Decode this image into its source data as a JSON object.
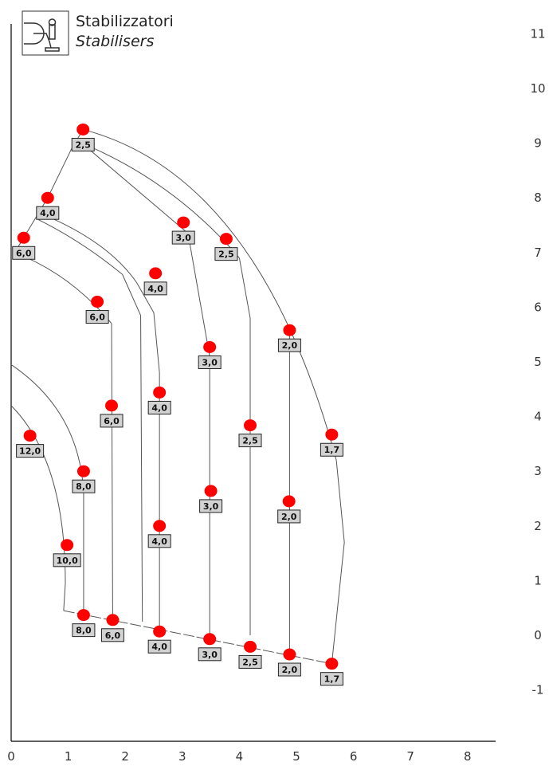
{
  "legend": {
    "icon": "stabiliser-icon",
    "title": "Stabilizzatori",
    "subtitle": "Stabilisers"
  },
  "chart_data": {
    "type": "scatter",
    "title": "",
    "xlabel": "",
    "ylabel": "",
    "xlim": [
      0,
      8
    ],
    "ylim": [
      -1,
      11
    ],
    "x_ticks": [
      0,
      1,
      2,
      3,
      4,
      5,
      6,
      7,
      8
    ],
    "y_ticks": [
      11,
      10,
      9,
      8,
      7,
      6,
      5,
      4,
      3,
      2,
      1,
      0,
      -1
    ],
    "grid": false,
    "colors": {
      "marker": "#ff0000",
      "curve": "#555555",
      "label_box": "#d2d2d2"
    },
    "points": [
      {
        "x": 1.26,
        "y": 9.25,
        "label": "2,5"
      },
      {
        "x": 0.64,
        "y": 8.0,
        "label": "4,0"
      },
      {
        "x": 0.22,
        "y": 7.27,
        "label": "6,0"
      },
      {
        "x": 0.33,
        "y": 3.65,
        "label": "12,0"
      },
      {
        "x": 3.02,
        "y": 7.55,
        "label": "3,0"
      },
      {
        "x": 3.77,
        "y": 7.25,
        "label": "2,5"
      },
      {
        "x": 2.53,
        "y": 6.62,
        "label": "4,0"
      },
      {
        "x": 1.51,
        "y": 6.1,
        "label": "6,0"
      },
      {
        "x": 4.88,
        "y": 5.58,
        "label": "2,0"
      },
      {
        "x": 3.48,
        "y": 5.27,
        "label": "3,0"
      },
      {
        "x": 2.6,
        "y": 4.44,
        "label": "4,0"
      },
      {
        "x": 1.76,
        "y": 4.2,
        "label": "6,0"
      },
      {
        "x": 4.19,
        "y": 3.84,
        "label": "2,5"
      },
      {
        "x": 5.62,
        "y": 3.67,
        "label": "1,7"
      },
      {
        "x": 1.27,
        "y": 3.0,
        "label": "8,0"
      },
      {
        "x": 3.5,
        "y": 2.64,
        "label": "3,0"
      },
      {
        "x": 4.87,
        "y": 2.45,
        "label": "2,0"
      },
      {
        "x": 2.6,
        "y": 2.0,
        "label": "4,0"
      },
      {
        "x": 0.98,
        "y": 1.65,
        "label": "10,0"
      },
      {
        "x": 1.27,
        "y": 0.37,
        "label": "8,0"
      },
      {
        "x": 1.78,
        "y": 0.28,
        "label": "6,0"
      },
      {
        "x": 2.6,
        "y": 0.07,
        "label": "4,0"
      },
      {
        "x": 3.48,
        "y": -0.07,
        "label": "3,0"
      },
      {
        "x": 4.19,
        "y": -0.21,
        "label": "2,5"
      },
      {
        "x": 4.88,
        "y": -0.35,
        "label": "2,0"
      },
      {
        "x": 5.62,
        "y": -0.52,
        "label": "1,7"
      }
    ],
    "curves": [
      {
        "type": "arc",
        "from": [
          1.26,
          9.25
        ],
        "control": [
          4.35,
          8.4
        ],
        "to": [
          5.7,
          3.2
        ]
      },
      {
        "type": "line",
        "points": [
          [
            5.7,
            3.2
          ],
          [
            5.84,
            1.7
          ],
          [
            5.62,
            -0.52
          ]
        ]
      },
      {
        "type": "arc",
        "from": [
          1.24,
          9.0
        ],
        "control": [
          2.85,
          8.3
        ],
        "to": [
          4.0,
          6.9
        ]
      },
      {
        "type": "line",
        "points": [
          [
            4.0,
            6.9
          ],
          [
            4.19,
            5.8
          ],
          [
            4.19,
            0.0
          ]
        ]
      },
      {
        "type": "arc",
        "from": [
          0.55,
          7.7
        ],
        "control": [
          1.7,
          7.2
        ],
        "to": [
          2.2,
          6.45
        ]
      },
      {
        "type": "line",
        "points": [
          [
            2.2,
            6.45
          ],
          [
            2.5,
            5.9
          ],
          [
            2.6,
            4.8
          ],
          [
            2.6,
            0.07
          ]
        ]
      },
      {
        "type": "arc",
        "from": [
          0.48,
          7.6
        ],
        "control": [
          1.25,
          7.2
        ],
        "to": [
          1.95,
          6.6
        ]
      },
      {
        "type": "line",
        "points": [
          [
            1.95,
            6.6
          ],
          [
            2.27,
            5.85
          ],
          [
            2.3,
            0.25
          ]
        ]
      },
      {
        "type": "arc",
        "from": [
          0.06,
          7.0
        ],
        "control": [
          1.05,
          6.6
        ],
        "to": [
          1.76,
          5.7
        ]
      },
      {
        "type": "line",
        "points": [
          [
            1.76,
            5.7
          ],
          [
            1.78,
            0.28
          ]
        ]
      },
      {
        "type": "line",
        "points": [
          [
            1.24,
            9.0
          ],
          [
            3.1,
            7.35
          ],
          [
            3.48,
            5.1
          ],
          [
            3.48,
            -0.07
          ]
        ]
      },
      {
        "type": "line",
        "points": [
          [
            4.88,
            5.58
          ],
          [
            4.88,
            -0.35
          ]
        ]
      },
      {
        "type": "arc",
        "from": [
          0.0,
          4.95
        ],
        "control": [
          1.2,
          4.1
        ],
        "to": [
          1.27,
          2.6
        ]
      },
      {
        "type": "line",
        "points": [
          [
            1.27,
            2.6
          ],
          [
            1.27,
            0.37
          ]
        ]
      },
      {
        "type": "arc",
        "from": [
          0.0,
          4.2
        ],
        "control": [
          0.95,
          3.2
        ],
        "to": [
          0.95,
          0.95
        ]
      },
      {
        "type": "line",
        "points": [
          [
            0.95,
            0.95
          ],
          [
            0.92,
            0.45
          ]
        ]
      },
      {
        "type": "line",
        "points": [
          [
            0.92,
            0.45
          ],
          [
            5.62,
            -0.52
          ]
        ],
        "dashed": true
      },
      {
        "type": "line",
        "points": [
          [
            1.26,
            9.25
          ],
          [
            1.06,
            8.9
          ],
          [
            0.64,
            8.0
          ],
          [
            0.22,
            7.27
          ],
          [
            0.06,
            7.0
          ]
        ]
      }
    ]
  }
}
